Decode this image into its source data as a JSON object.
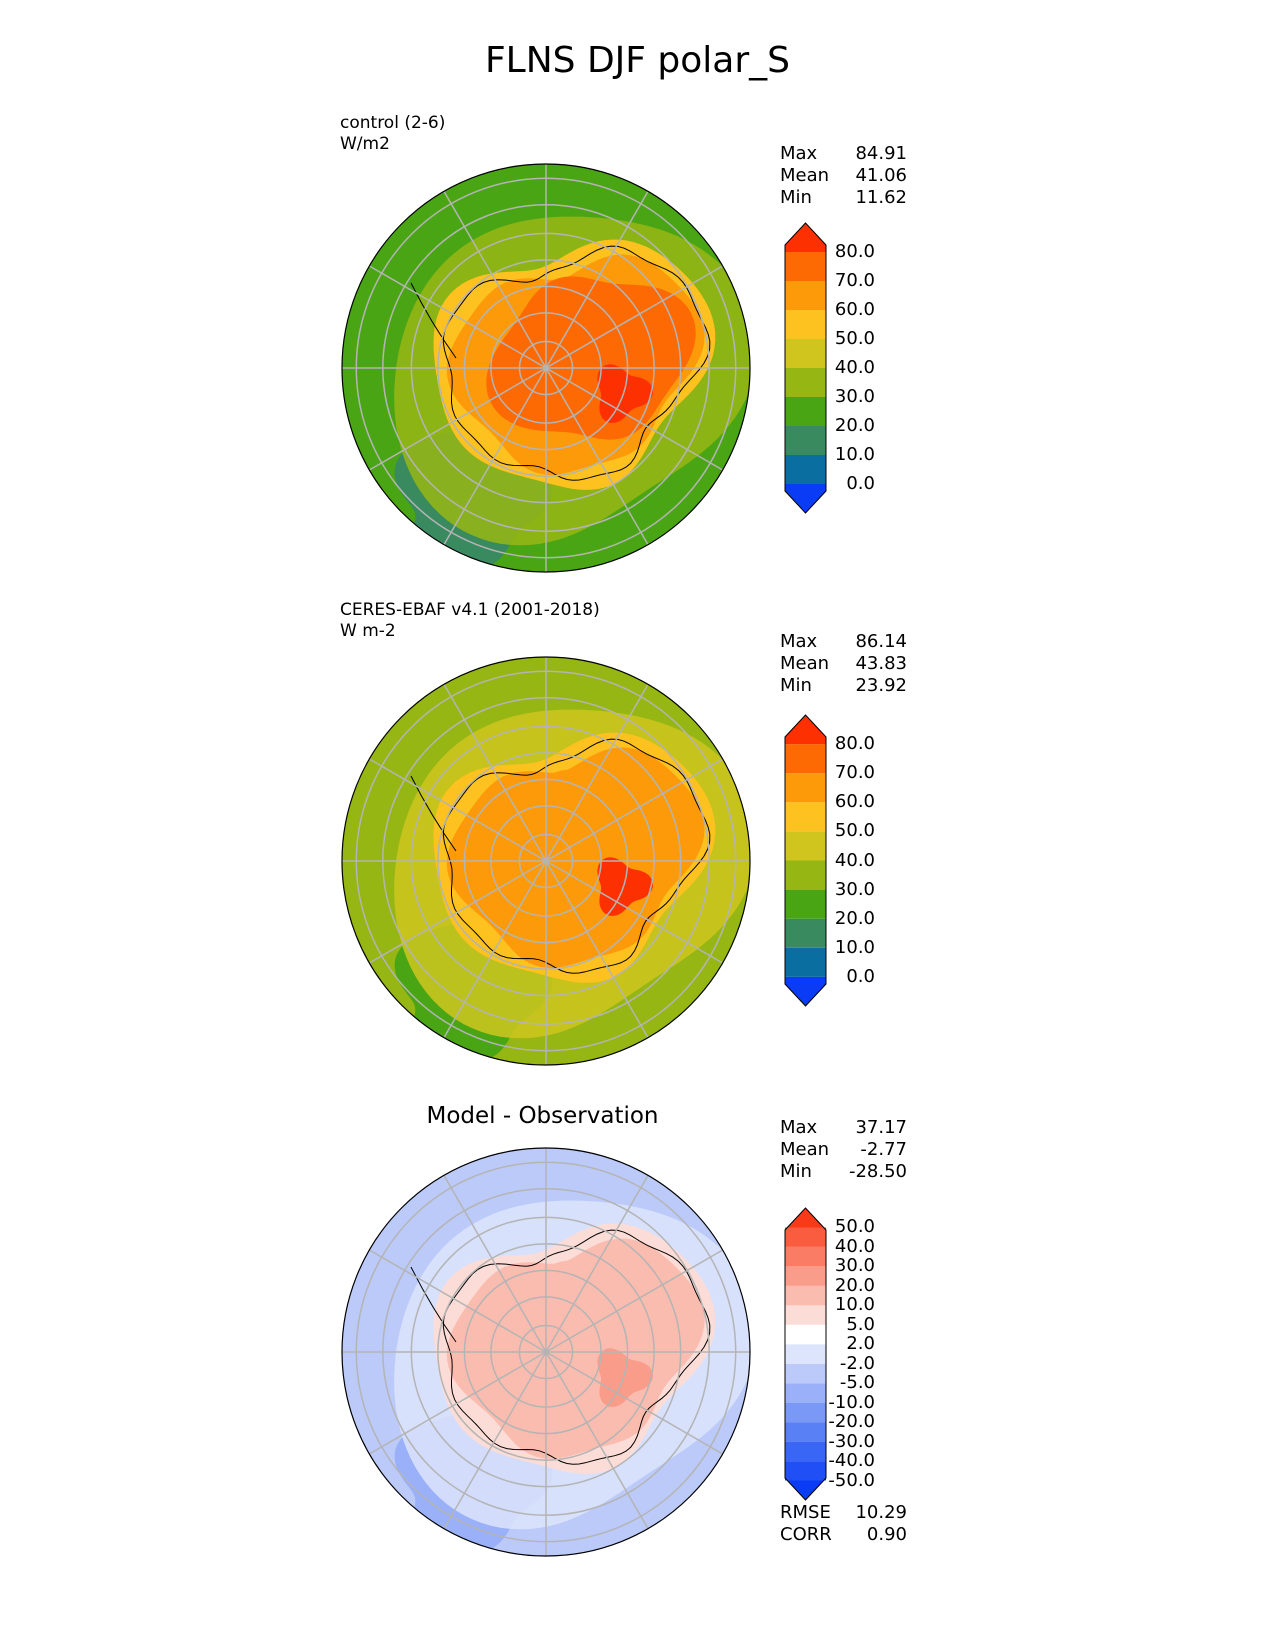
{
  "title": "FLNS DJF polar_S",
  "panels": [
    {
      "label_line1": "control (2-6)",
      "label_line2": "W/m2",
      "center_title": "",
      "stats": {
        "max_label": "Max",
        "max": "84.91",
        "mean_label": "Mean",
        "mean": "41.06",
        "min_label": "Min",
        "min": "11.62"
      },
      "colorbar": {
        "ticks": [
          "80.0",
          "70.0",
          "60.0",
          "50.0",
          "40.0",
          "30.0",
          "20.0",
          "10.0",
          "0.0"
        ],
        "colors": [
          "#0a3cf5",
          "#0a6ea0",
          "#3a8a60",
          "#4aa514",
          "#96b614",
          "#cfc51e",
          "#fdc21f",
          "#fd9a0a",
          "#fd6a04",
          "#fd3002"
        ]
      },
      "map_fields": {
        "ocean_outer": "#4aa514",
        "ocean_dark": "#3a8a60",
        "coast_belt": "#96b614",
        "ice_edge": "#fdc21f",
        "ice_mid": "#fd9a0a",
        "interior": "#fd6a04",
        "hotspot": "#fd3002"
      }
    },
    {
      "label_line1": "CERES-EBAF v4.1 (2001-2018)",
      "label_line2": "W m-2",
      "center_title": "",
      "stats": {
        "max_label": "Max",
        "max": "86.14",
        "mean_label": "Mean",
        "mean": "43.83",
        "min_label": "Min",
        "min": "23.92"
      },
      "colorbar": {
        "ticks": [
          "80.0",
          "70.0",
          "60.0",
          "50.0",
          "40.0",
          "30.0",
          "20.0",
          "10.0",
          "0.0"
        ],
        "colors": [
          "#0a3cf5",
          "#0a6ea0",
          "#3a8a60",
          "#4aa514",
          "#96b614",
          "#cfc51e",
          "#fdc21f",
          "#fd9a0a",
          "#fd6a04",
          "#fd3002"
        ]
      },
      "map_fields": {
        "ocean_outer": "#96b614",
        "ocean_dark": "#4aa514",
        "coast_belt": "#cfc51e",
        "ice_edge": "#fdc21f",
        "ice_mid": "#fd9a0a",
        "interior": "#fd9a0a",
        "hotspot": "#fd3002"
      }
    },
    {
      "label_line1": "",
      "label_line2": "",
      "center_title": "Model - Observation",
      "stats": {
        "max_label": "Max",
        "max": "37.17",
        "mean_label": "Mean",
        "mean": "-2.77",
        "min_label": "Min",
        "min": "-28.50"
      },
      "colorbar": {
        "ticks": [
          "50.0",
          "40.0",
          "30.0",
          "20.0",
          "10.0",
          "5.0",
          "2.0",
          "-2.0",
          "-5.0",
          "-10.0",
          "-20.0",
          "-30.0",
          "-40.0",
          "-50.0"
        ],
        "colors": [
          "#0a3cf5",
          "#2050f5",
          "#3a66f5",
          "#5a80f5",
          "#7a98f5",
          "#9ab0f8",
          "#bccafa",
          "#dde5fc",
          "#ffffff",
          "#fcdcd6",
          "#fbbcb0",
          "#fa9c8a",
          "#fa7c64",
          "#f95c3e",
          "#f83a18"
        ]
      },
      "map_fields": {
        "ocean_outer": "#bccafa",
        "ocean_dark": "#9ab0f8",
        "coast_belt": "#dde5fc",
        "ice_edge": "#fcdcd6",
        "ice_mid": "#fbbcb0",
        "interior": "#fbbcb0",
        "hotspot": "#fa9c8a"
      },
      "extra_stats": {
        "rmse_label": "RMSE",
        "rmse": "10.29",
        "corr_label": "CORR",
        "corr": "0.90"
      }
    }
  ]
}
